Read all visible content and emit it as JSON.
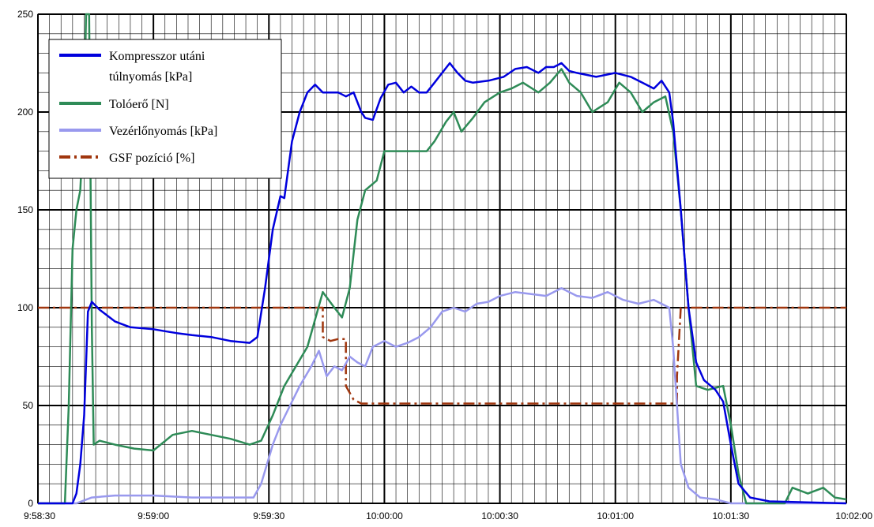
{
  "chart_data": {
    "type": "line",
    "title": "",
    "xlabel": "",
    "ylabel": "",
    "xlim": [
      "9:58:30",
      "10:02:00"
    ],
    "ylim": [
      0,
      250
    ],
    "y_ticks": [
      0,
      50,
      100,
      150,
      200,
      250
    ],
    "x_tick_labels": [
      "9:58:30",
      "9:59:00",
      "9:59:30",
      "10:00:00",
      "10:00:30",
      "10:01:00",
      "10:01:30",
      "10:02:00"
    ],
    "grid": "major and minor (minor every 3 s and 10 units)",
    "legend_position": "top-left",
    "series": [
      {
        "name": "Kompresszor  utáni túlnyomás [kPa]",
        "color": "#0000dd",
        "style": "solid",
        "points": [
          [
            "9:58:30",
            0
          ],
          [
            "9:58:39",
            0
          ],
          [
            "9:58:40",
            5
          ],
          [
            "9:58:41",
            20
          ],
          [
            "9:58:42",
            45
          ],
          [
            "9:58:43",
            98
          ],
          [
            "9:58:44",
            103
          ],
          [
            "9:58:46",
            99
          ],
          [
            "9:58:50",
            93
          ],
          [
            "9:58:54",
            90
          ],
          [
            "9:59:00",
            89
          ],
          [
            "9:59:03",
            88
          ],
          [
            "9:59:06",
            87
          ],
          [
            "9:59:10",
            86
          ],
          [
            "9:59:15",
            85
          ],
          [
            "9:59:20",
            83
          ],
          [
            "9:59:25",
            82
          ],
          [
            "9:59:27",
            85
          ],
          [
            "9:59:29",
            110
          ],
          [
            "9:59:31",
            140
          ],
          [
            "9:59:33",
            157
          ],
          [
            "9:59:34",
            156
          ],
          [
            "9:59:36",
            185
          ],
          [
            "9:59:38",
            200
          ],
          [
            "9:59:40",
            210
          ],
          [
            "9:59:42",
            214
          ],
          [
            "9:59:44",
            210
          ],
          [
            "9:59:46",
            210
          ],
          [
            "9:59:48",
            210
          ],
          [
            "9:59:50",
            208
          ],
          [
            "9:59:52",
            210
          ],
          [
            "9:59:54",
            200
          ],
          [
            "9:59:55",
            197
          ],
          [
            "9:59:57",
            196
          ],
          [
            "9:59:59",
            207
          ],
          [
            "10:00:01",
            214
          ],
          [
            "10:00:03",
            215
          ],
          [
            "10:00:05",
            210
          ],
          [
            "10:00:07",
            213
          ],
          [
            "10:00:09",
            210
          ],
          [
            "10:00:11",
            210
          ],
          [
            "10:00:13",
            215
          ],
          [
            "10:00:15",
            220
          ],
          [
            "10:00:17",
            225
          ],
          [
            "10:00:19",
            220
          ],
          [
            "10:00:21",
            216
          ],
          [
            "10:00:23",
            215
          ],
          [
            "10:00:27",
            216
          ],
          [
            "10:00:31",
            218
          ],
          [
            "10:00:34",
            222
          ],
          [
            "10:00:37",
            223
          ],
          [
            "10:00:40",
            220
          ],
          [
            "10:00:42",
            223
          ],
          [
            "10:00:44",
            223
          ],
          [
            "10:00:46",
            225
          ],
          [
            "10:00:48",
            221
          ],
          [
            "10:00:50",
            220
          ],
          [
            "10:00:55",
            218
          ],
          [
            "10:01:00",
            220
          ],
          [
            "10:01:04",
            218
          ],
          [
            "10:01:07",
            215
          ],
          [
            "10:01:10",
            212
          ],
          [
            "10:01:12",
            216
          ],
          [
            "10:01:14",
            210
          ],
          [
            "10:01:15",
            195
          ],
          [
            "10:01:17",
            150
          ],
          [
            "10:01:19",
            100
          ],
          [
            "10:01:21",
            72
          ],
          [
            "10:01:23",
            63
          ],
          [
            "10:01:26",
            58
          ],
          [
            "10:01:28",
            52
          ],
          [
            "10:01:30",
            30
          ],
          [
            "10:01:32",
            10
          ],
          [
            "10:01:35",
            3
          ],
          [
            "10:01:40",
            1
          ],
          [
            "10:02:00",
            0
          ]
        ]
      },
      {
        "name": "Tolóerő [N]",
        "color": "#2e8b57",
        "style": "solid",
        "points": [
          [
            "9:58:30",
            0
          ],
          [
            "9:58:37",
            0
          ],
          [
            "9:58:38",
            50
          ],
          [
            "9:58:39",
            130
          ],
          [
            "9:58:40",
            150
          ],
          [
            "9:58:41",
            160
          ],
          [
            "9:58:42",
            200
          ],
          [
            "9:58:42.5",
            250
          ],
          [
            "9:58:43.3",
            250
          ],
          [
            "9:58:44",
            90
          ],
          [
            "9:58:44.5",
            30
          ],
          [
            "9:58:46",
            32
          ],
          [
            "9:58:50",
            30
          ],
          [
            "9:58:55",
            28
          ],
          [
            "9:59:00",
            27
          ],
          [
            "9:59:05",
            35
          ],
          [
            "9:59:10",
            37
          ],
          [
            "9:59:15",
            35
          ],
          [
            "9:59:20",
            33
          ],
          [
            "9:59:25",
            30
          ],
          [
            "9:59:28",
            32
          ],
          [
            "9:59:31",
            45
          ],
          [
            "9:59:34",
            60
          ],
          [
            "9:59:37",
            70
          ],
          [
            "9:59:40",
            80
          ],
          [
            "9:59:44",
            108
          ],
          [
            "9:59:47",
            100
          ],
          [
            "9:59:49",
            95
          ],
          [
            "9:59:51",
            110
          ],
          [
            "9:59:53",
            145
          ],
          [
            "9:59:55",
            160
          ],
          [
            "9:59:58",
            165
          ],
          [
            "10:00:00",
            180
          ],
          [
            "10:00:03",
            180
          ],
          [
            "10:00:07",
            180
          ],
          [
            "10:00:11",
            180
          ],
          [
            "10:00:13",
            185
          ],
          [
            "10:00:16",
            195
          ],
          [
            "10:00:18",
            200
          ],
          [
            "10:00:20",
            190
          ],
          [
            "10:00:23",
            197
          ],
          [
            "10:00:26",
            205
          ],
          [
            "10:00:30",
            210
          ],
          [
            "10:00:33",
            212
          ],
          [
            "10:00:36",
            215
          ],
          [
            "10:00:40",
            210
          ],
          [
            "10:00:43",
            215
          ],
          [
            "10:00:46",
            222
          ],
          [
            "10:00:48",
            215
          ],
          [
            "10:00:51",
            210
          ],
          [
            "10:00:54",
            200
          ],
          [
            "10:00:58",
            205
          ],
          [
            "10:01:01",
            215
          ],
          [
            "10:01:04",
            210
          ],
          [
            "10:01:07",
            200
          ],
          [
            "10:01:10",
            205
          ],
          [
            "10:01:13",
            208
          ],
          [
            "10:01:15",
            190
          ],
          [
            "10:01:17",
            150
          ],
          [
            "10:01:19",
            100
          ],
          [
            "10:01:21",
            60
          ],
          [
            "10:01:24",
            58
          ],
          [
            "10:01:28",
            60
          ],
          [
            "10:01:30",
            40
          ],
          [
            "10:01:32",
            15
          ],
          [
            "10:01:34",
            0
          ],
          [
            "10:01:44",
            0
          ],
          [
            "10:01:46",
            8
          ],
          [
            "10:01:50",
            5
          ],
          [
            "10:01:54",
            8
          ],
          [
            "10:01:57",
            3
          ],
          [
            "10:02:00",
            2
          ]
        ]
      },
      {
        "name": "Vezérlőnyomás [kPa]",
        "color": "#9999ee",
        "style": "solid",
        "points": [
          [
            "9:58:30",
            0
          ],
          [
            "9:58:40",
            0
          ],
          [
            "9:58:44",
            3
          ],
          [
            "9:58:50",
            4
          ],
          [
            "9:59:00",
            4
          ],
          [
            "9:59:10",
            3
          ],
          [
            "9:59:20",
            3
          ],
          [
            "9:59:26",
            3
          ],
          [
            "9:59:28",
            10
          ],
          [
            "9:59:31",
            30
          ],
          [
            "9:59:33",
            40
          ],
          [
            "9:59:35",
            48
          ],
          [
            "9:59:38",
            60
          ],
          [
            "9:59:41",
            70
          ],
          [
            "9:59:43",
            78
          ],
          [
            "9:59:45",
            65
          ],
          [
            "9:59:47",
            70
          ],
          [
            "9:59:49",
            68
          ],
          [
            "9:59:51",
            75
          ],
          [
            "9:59:53",
            72
          ],
          [
            "9:59:55",
            70
          ],
          [
            "9:59:57",
            80
          ],
          [
            "10:00:00",
            83
          ],
          [
            "10:00:03",
            80
          ],
          [
            "10:00:06",
            82
          ],
          [
            "10:00:09",
            85
          ],
          [
            "10:00:12",
            90
          ],
          [
            "10:00:15",
            98
          ],
          [
            "10:00:18",
            100
          ],
          [
            "10:00:21",
            98
          ],
          [
            "10:00:24",
            102
          ],
          [
            "10:00:27",
            103
          ],
          [
            "10:00:30",
            106
          ],
          [
            "10:00:34",
            108
          ],
          [
            "10:00:38",
            107
          ],
          [
            "10:00:42",
            106
          ],
          [
            "10:00:46",
            110
          ],
          [
            "10:00:50",
            106
          ],
          [
            "10:00:54",
            105
          ],
          [
            "10:00:58",
            108
          ],
          [
            "10:01:02",
            104
          ],
          [
            "10:01:06",
            102
          ],
          [
            "10:01:10",
            104
          ],
          [
            "10:01:14",
            100
          ],
          [
            "10:01:15",
            80
          ],
          [
            "10:01:16",
            50
          ],
          [
            "10:01:17",
            20
          ],
          [
            "10:01:19",
            8
          ],
          [
            "10:01:22",
            3
          ],
          [
            "10:01:26",
            2
          ],
          [
            "10:01:30",
            0
          ],
          [
            "10:02:00",
            0
          ]
        ]
      },
      {
        "name": "GSF pozíció [%]",
        "color": "#a0360e",
        "style": "dash-dot",
        "points": [
          [
            "9:58:30",
            100
          ],
          [
            "9:59:44",
            100
          ],
          [
            "9:59:44",
            85
          ],
          [
            "9:59:46",
            83
          ],
          [
            "9:59:48",
            84
          ],
          [
            "9:59:50",
            84
          ],
          [
            "9:59:50",
            60
          ],
          [
            "9:59:52",
            53
          ],
          [
            "9:59:54",
            51
          ],
          [
            "10:00:00",
            51
          ],
          [
            "10:01:10",
            51
          ],
          [
            "10:01:16",
            51
          ],
          [
            "10:01:16",
            65
          ],
          [
            "10:01:17",
            100
          ],
          [
            "10:02:00",
            100
          ]
        ]
      }
    ]
  }
}
